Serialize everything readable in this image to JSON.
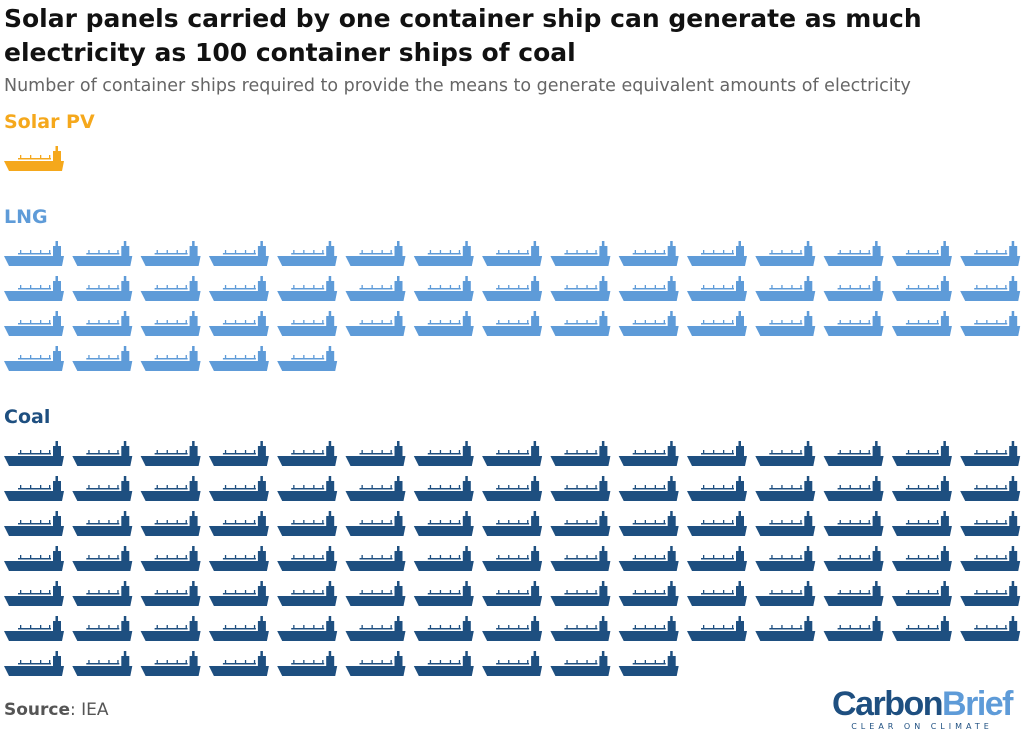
{
  "chart_data": {
    "type": "pictogram",
    "title": "Solar panels carried by one container ship can generate as much electricity as 100 container ships of coal",
    "subtitle": "Number of container ships required to provide the means to generate equivalent amounts of electricity",
    "icons_per_row": 15,
    "series": [
      {
        "name": "Solar PV",
        "color": "#f5a81c",
        "values": [
          1
        ]
      },
      {
        "name": "LNG",
        "color": "#5e9bd8",
        "values": [
          50
        ]
      },
      {
        "name": "Coal",
        "color": "#1e4f80",
        "values": [
          100
        ]
      }
    ]
  },
  "footer": {
    "source_label": "Source",
    "source_text": ": IEA"
  },
  "logo": {
    "part1": "Carbon",
    "part2": "Brief",
    "tagline": "CLEAR ON CLIMATE"
  }
}
